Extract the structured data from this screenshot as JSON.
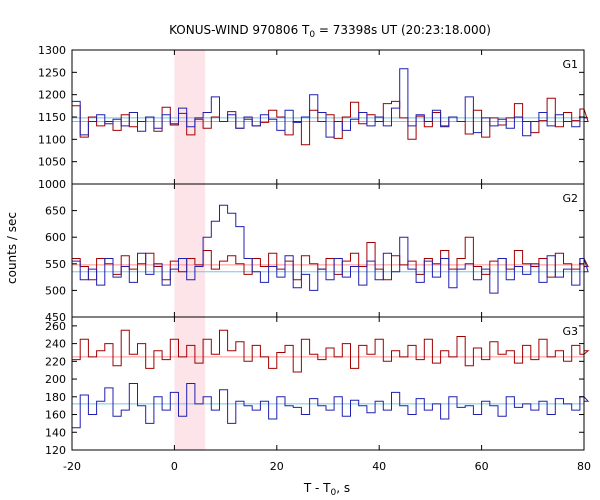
{
  "colors": {
    "red_series": "#a00000",
    "blue_series": "#2020b0",
    "red_background": "#ff9090",
    "blue_background": "#70c8e8",
    "highlight_band": "#fde4e8",
    "frame": "#000000"
  },
  "chart_data": {
    "type": "line",
    "title_main": "KONUS-WIND 970806 T",
    "title_sub": "0",
    "title_rest": " = 73398s UT (20:23:18.000)",
    "xlabel_main": "T - T",
    "xlabel_sub": "0",
    "xlabel_rest": ", s",
    "ylabel": "counts / sec",
    "xlim": [
      -20,
      80
    ],
    "xticks": [
      "-20",
      "0",
      "20",
      "40",
      "60",
      "80"
    ],
    "highlight_interval": [
      0,
      6
    ],
    "step_style": "histogram steps, 1.6 s bins",
    "panels": [
      {
        "label": "G1",
        "ylim": [
          1000,
          1300
        ],
        "yticks": [
          "1000",
          "1050",
          "1100",
          "1150",
          "1200",
          "1250",
          "1300"
        ],
        "red_background": 1140,
        "blue_background": 1148,
        "series": [
          {
            "color_key": "red_series",
            "x_start": -20,
            "bin_width": 1.6,
            "values": [
              1175,
              1105,
              1150,
              1130,
              1140,
              1120,
              1155,
              1128,
              1140,
              1150,
              1118,
              1172,
              1132,
              1158,
              1110,
              1145,
              1125,
              1150,
              1140,
              1162,
              1125,
              1145,
              1130,
              1138,
              1165,
              1150,
              1110,
              1140,
              1088,
              1165,
              1140,
              1155,
              1102,
              1150,
              1183,
              1135,
              1155,
              1140,
              1180,
              1185,
              1148,
              1100,
              1152,
              1128,
              1160,
              1130,
              1150,
              1140,
              1112,
              1165,
              1105,
              1148,
              1132,
              1148,
              1180,
              1140,
              1115,
              1142,
              1192,
              1128,
              1160,
              1142,
              1168,
              1140
            ]
          },
          {
            "color_key": "blue_series",
            "x_start": -20,
            "bin_width": 1.6,
            "values": [
              1185,
              1110,
              1140,
              1155,
              1135,
              1145,
              1130,
              1160,
              1118,
              1150,
              1125,
              1155,
              1135,
              1170,
              1128,
              1148,
              1160,
              1195,
              1140,
              1155,
              1125,
              1150,
              1130,
              1155,
              1145,
              1120,
              1165,
              1138,
              1150,
              1200,
              1160,
              1105,
              1140,
              1120,
              1145,
              1160,
              1130,
              1150,
              1130,
              1170,
              1258,
              1130,
              1155,
              1140,
              1165,
              1128,
              1150,
              1140,
              1195,
              1115,
              1148,
              1130,
              1145,
              1125,
              1150,
              1108,
              1140,
              1160,
              1130,
              1155,
              1140,
              1128,
              1150,
              1148
            ]
          }
        ]
      },
      {
        "label": "G2",
        "ylim": [
          450,
          700
        ],
        "yticks": [
          "450",
          "500",
          "550",
          "600",
          "650"
        ],
        "red_background": 548,
        "blue_background": 535,
        "series": [
          {
            "color_key": "red_series",
            "x_start": -20,
            "bin_width": 1.6,
            "values": [
              560,
              545,
              520,
              560,
              550,
              530,
              565,
              540,
              550,
              570,
              545,
              520,
              555,
              535,
              560,
              548,
              575,
              540,
              555,
              565,
              550,
              530,
              560,
              545,
              570,
              540,
              555,
              520,
              565,
              550,
              540,
              560,
              530,
              555,
              570,
              545,
              590,
              540,
              520,
              565,
              548,
              555,
              530,
              560,
              550,
              575,
              540,
              560,
              600,
              545,
              530,
              555,
              560,
              540,
              575,
              550,
              545,
              560,
              525,
              570,
              550,
              540,
              560,
              545
            ]
          },
          {
            "color_key": "blue_series",
            "x_start": -20,
            "bin_width": 1.6,
            "values": [
              555,
              520,
              540,
              510,
              560,
              525,
              545,
              515,
              570,
              530,
              550,
              510,
              540,
              560,
              520,
              545,
              600,
              630,
              660,
              645,
              620,
              560,
              535,
              515,
              545,
              525,
              565,
              505,
              530,
              500,
              540,
              520,
              560,
              525,
              545,
              510,
              555,
              520,
              570,
              535,
              600,
              540,
              515,
              555,
              525,
              560,
              505,
              540,
              550,
              520,
              540,
              495,
              560,
              520,
              545,
              530,
              550,
              515,
              565,
              525,
              540,
              510,
              560,
              535
            ]
          }
        ]
      },
      {
        "label": "G3",
        "ylim": [
          120,
          270
        ],
        "yticks": [
          "120",
          "140",
          "160",
          "180",
          "200",
          "220",
          "240",
          "260"
        ],
        "red_background": 225,
        "blue_background": 172,
        "series": [
          {
            "color_key": "red_series",
            "x_start": -20,
            "bin_width": 1.6,
            "values": [
              222,
              245,
              225,
              232,
              240,
              215,
              255,
              228,
              240,
              212,
              232,
              222,
              245,
              225,
              238,
              218,
              245,
              228,
              255,
              232,
              242,
              220,
              238,
              225,
              212,
              230,
              238,
              208,
              245,
              228,
              222,
              235,
              225,
              240,
              212,
              238,
              228,
              245,
              220,
              232,
              225,
              238,
              222,
              245,
              218,
              232,
              225,
              248,
              215,
              235,
              222,
              242,
              228,
              232,
              218,
              238,
              222,
              245,
              225,
              232,
              220,
              238,
              228,
              232
            ]
          },
          {
            "color_key": "blue_series",
            "x_start": -20,
            "bin_width": 1.6,
            "values": [
              145,
              182,
              160,
              175,
              190,
              158,
              165,
              195,
              170,
              150,
              180,
              165,
              185,
              158,
              195,
              172,
              180,
              165,
              188,
              150,
              175,
              170,
              165,
              175,
              155,
              180,
              170,
              168,
              160,
              178,
              170,
              165,
              180,
              158,
              176,
              170,
              162,
              175,
              165,
              185,
              170,
              160,
              178,
              165,
              172,
              155,
              180,
              168,
              170,
              160,
              175,
              170,
              158,
              180,
              168,
              172,
              165,
              175,
              160,
              178,
              172,
              165,
              180,
              175
            ]
          }
        ]
      }
    ]
  }
}
